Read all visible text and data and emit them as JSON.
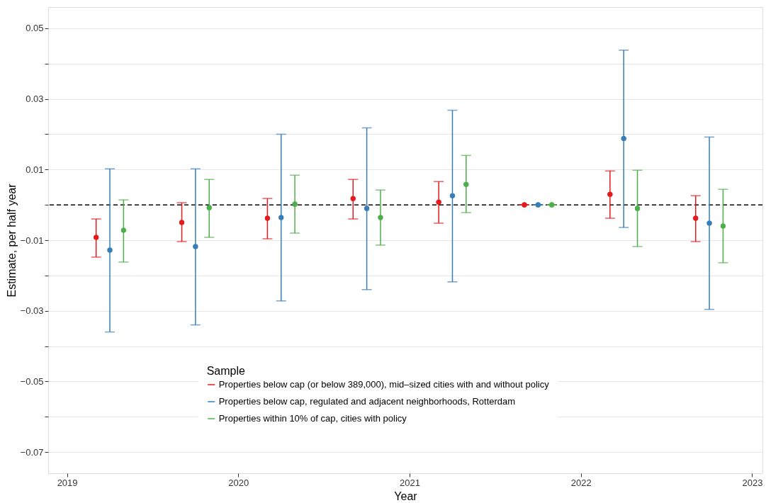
{
  "chart_data": {
    "type": "scatter",
    "xlabel": "Year",
    "ylabel": "Estimate, per half year",
    "legend_title": "Sample",
    "xlim": [
      2018.89,
      2023.06
    ],
    "xticks": [
      2019,
      2020,
      2021,
      2022,
      2023
    ],
    "ylim": [
      -0.076,
      0.056
    ],
    "yticks": [
      {
        "value": -0.07,
        "label": "−0.07"
      },
      {
        "value": -0.06,
        "label": null
      },
      {
        "value": -0.05,
        "label": "−0.05"
      },
      {
        "value": -0.04,
        "label": null
      },
      {
        "value": -0.03,
        "label": "−0.03"
      },
      {
        "value": -0.02,
        "label": null
      },
      {
        "value": -0.01,
        "label": "−0.01"
      },
      {
        "value": 0,
        "label": null
      },
      {
        "value": 0.01,
        "label": "0.01"
      },
      {
        "value": 0.02,
        "label": null
      },
      {
        "value": 0.03,
        "label": "0.03"
      },
      {
        "value": 0.04,
        "label": null
      },
      {
        "value": 0.05,
        "label": "0.05"
      }
    ],
    "grid": "y",
    "legend": "bottom",
    "marker": "circle",
    "ref_lines": [
      {
        "axis": "y",
        "value": 0,
        "line_style": "dashed",
        "color": "#000000"
      }
    ],
    "series": [
      {
        "name": "Properties below cap (or below 389,000), mid–sized cities with and without policy",
        "color": "#e41a1c",
        "x": [
          2019.17,
          2019.67,
          2020.17,
          2020.67,
          2021.17,
          2021.67,
          2022.17,
          2022.67
        ],
        "values": [
          -0.0092,
          -0.005,
          -0.0038,
          0.0018,
          0.0008,
          0,
          0.003,
          -0.0038
        ],
        "errors": [
          [
            -0.0148,
            -0.004
          ],
          [
            -0.0104,
            0.0006
          ],
          [
            -0.0096,
            0.0018
          ],
          [
            -0.004,
            0.0072
          ],
          [
            -0.0052,
            0.0066
          ],
          [
            0,
            0
          ],
          [
            -0.0038,
            0.0096
          ],
          [
            -0.0104,
            0.0026
          ]
        ]
      },
      {
        "name": "Properties below cap, regulated and adjacent neighborhoods, Rotterdam",
        "color": "#377eb8",
        "x": [
          2019.25,
          2019.75,
          2020.25,
          2020.75,
          2021.25,
          2021.75,
          2022.25,
          2022.75
        ],
        "values": [
          -0.0128,
          -0.0118,
          -0.0036,
          -0.001,
          0.0026,
          0,
          0.0188,
          -0.0052
        ],
        "errors": [
          [
            -0.036,
            0.0102
          ],
          [
            -0.034,
            0.0102
          ],
          [
            -0.0272,
            0.02
          ],
          [
            -0.024,
            0.0218
          ],
          [
            -0.0218,
            0.0268
          ],
          [
            0,
            0
          ],
          [
            -0.0064,
            0.0438
          ],
          [
            -0.0296,
            0.0192
          ]
        ]
      },
      {
        "name": "Properties within 10% of cap, cities with policy",
        "color": "#4daf4a",
        "x": [
          2019.33,
          2019.83,
          2020.33,
          2020.83,
          2021.33,
          2021.83,
          2022.33,
          2022.83
        ],
        "values": [
          -0.0072,
          -0.0008,
          0.0002,
          -0.0036,
          0.0058,
          0,
          -0.001,
          -0.006
        ],
        "errors": [
          [
            -0.0162,
            0.0014
          ],
          [
            -0.0092,
            0.0072
          ],
          [
            -0.008,
            0.0084
          ],
          [
            -0.0114,
            0.0042
          ],
          [
            -0.0022,
            0.014
          ],
          [
            0,
            0
          ],
          [
            -0.0118,
            0.0098
          ],
          [
            -0.0164,
            0.0044
          ]
        ]
      }
    ]
  }
}
